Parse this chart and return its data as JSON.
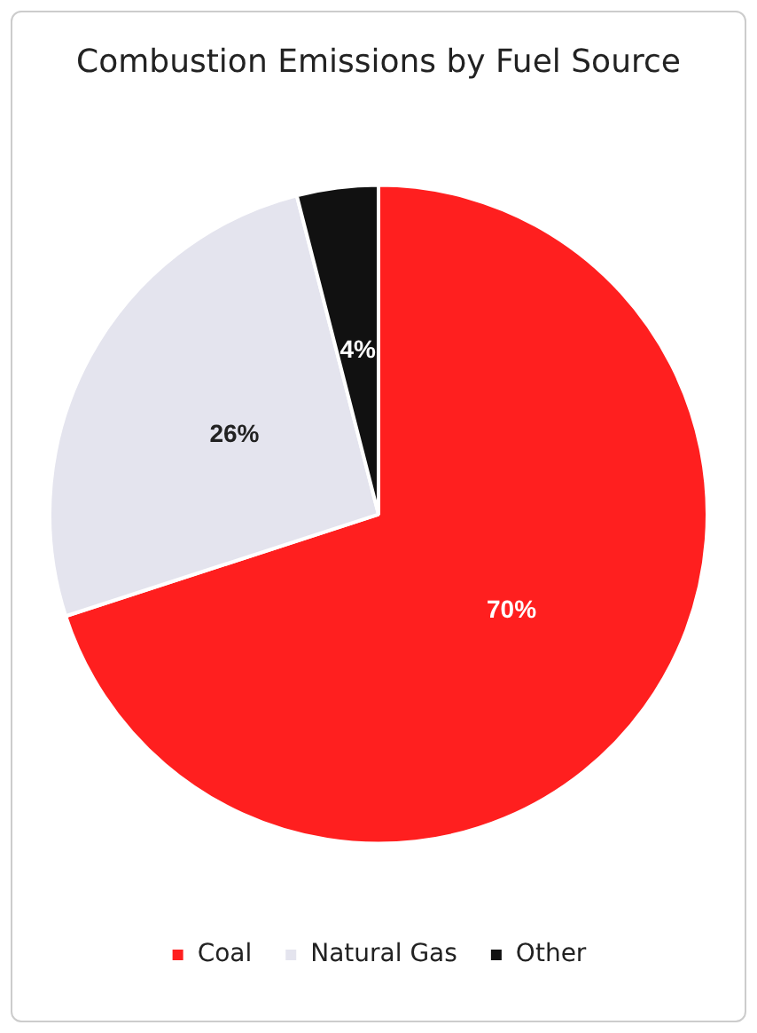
{
  "chart_data": {
    "type": "pie",
    "title": "Combustion Emissions by Fuel Source",
    "categories": [
      "Coal",
      "Natural Gas",
      "Other"
    ],
    "values": [
      70,
      26,
      4
    ],
    "value_labels": [
      "70%",
      "26%",
      "4%"
    ],
    "colors": [
      "#ff1f1f",
      "#e4e4ee",
      "#111111"
    ],
    "legend": "bottom"
  }
}
